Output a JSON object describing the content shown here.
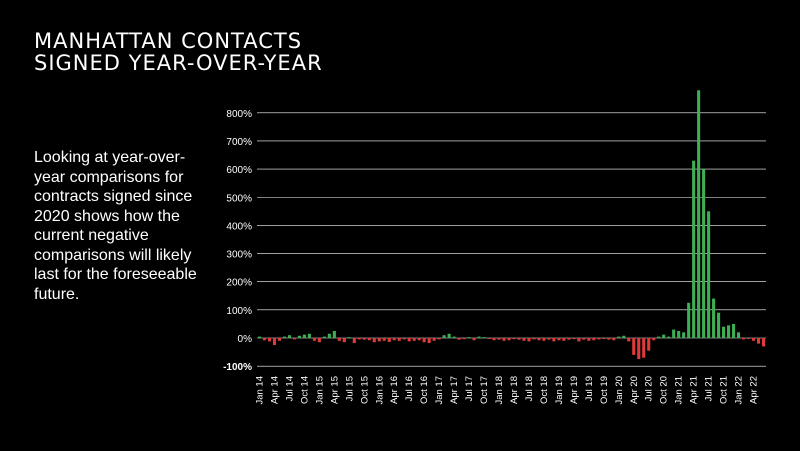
{
  "title": {
    "line1": "MANHATTAN CONTACTS",
    "line2": "SIGNED YEAR-OVER-YEAR"
  },
  "description": "Looking at year-over-year comparisons for contracts signed since 2020 shows how the current negative comparisons will likely last for the foreseeable future.",
  "chart_data": {
    "type": "bar",
    "title": "MANHATTAN CONTACTS SIGNED YEAR-OVER-YEAR",
    "xlabel": "",
    "ylabel": "",
    "unit": "%",
    "ylim": [
      -100,
      850
    ],
    "grid": true,
    "legend": "none",
    "colors": {
      "positive": "#3fae54",
      "negative": "#e03a3a",
      "grid": "#ffffff",
      "background": "#000000"
    },
    "y_ticks": [
      {
        "value": -100,
        "label": "-100%"
      },
      {
        "value": 0,
        "label": "0%"
      },
      {
        "value": 100,
        "label": "100%"
      },
      {
        "value": 200,
        "label": "200%"
      },
      {
        "value": 300,
        "label": "300%"
      },
      {
        "value": 400,
        "label": "400%"
      },
      {
        "value": 500,
        "label": "500%"
      },
      {
        "value": 600,
        "label": "600%"
      },
      {
        "value": 700,
        "label": "700%"
      },
      {
        "value": 800,
        "label": "800%"
      }
    ],
    "x_tick_labels": [
      "Jan 14",
      "Apr 14",
      "Jul 14",
      "Oct 14",
      "Jan 15",
      "Apr 15",
      "Jul 15",
      "Oct 15",
      "Jan 16",
      "Apr 16",
      "Jul 16",
      "Oct 16",
      "Jan 17",
      "Apr 17",
      "Jul 17",
      "Oct 17",
      "Jan 18",
      "Apr 18",
      "Jul 18",
      "Oct 18",
      "Jan 19",
      "Apr 19",
      "Jul 19",
      "Oct 19",
      "Jan 20",
      "Apr 20",
      "Jul 20",
      "Oct 20",
      "Jan 21",
      "Apr 21",
      "Jul 21",
      "Oct 21",
      "Jan 22",
      "Apr 22"
    ],
    "categories": [
      "Jan 14",
      "Feb 14",
      "Mar 14",
      "Apr 14",
      "May 14",
      "Jun 14",
      "Jul 14",
      "Aug 14",
      "Sep 14",
      "Oct 14",
      "Nov 14",
      "Dec 14",
      "Jan 15",
      "Feb 15",
      "Mar 15",
      "Apr 15",
      "May 15",
      "Jun 15",
      "Jul 15",
      "Aug 15",
      "Sep 15",
      "Oct 15",
      "Nov 15",
      "Dec 15",
      "Jan 16",
      "Feb 16",
      "Mar 16",
      "Apr 16",
      "May 16",
      "Jun 16",
      "Jul 16",
      "Aug 16",
      "Sep 16",
      "Oct 16",
      "Nov 16",
      "Dec 16",
      "Jan 17",
      "Feb 17",
      "Mar 17",
      "Apr 17",
      "May 17",
      "Jun 17",
      "Jul 17",
      "Aug 17",
      "Sep 17",
      "Oct 17",
      "Nov 17",
      "Dec 17",
      "Jan 18",
      "Feb 18",
      "Mar 18",
      "Apr 18",
      "May 18",
      "Jun 18",
      "Jul 18",
      "Aug 18",
      "Sep 18",
      "Oct 18",
      "Nov 18",
      "Dec 18",
      "Jan 19",
      "Feb 19",
      "Mar 19",
      "Apr 19",
      "May 19",
      "Jun 19",
      "Jul 19",
      "Aug 19",
      "Sep 19",
      "Oct 19",
      "Nov 19",
      "Dec 19",
      "Jan 20",
      "Feb 20",
      "Mar 20",
      "Apr 20",
      "May 20",
      "Jun 20",
      "Jul 20",
      "Aug 20",
      "Sep 20",
      "Oct 20",
      "Nov 20",
      "Dec 20",
      "Jan 21",
      "Feb 21",
      "Mar 21",
      "Apr 21",
      "May 21",
      "Jun 21",
      "Jul 21",
      "Aug 21",
      "Sep 21",
      "Oct 21",
      "Nov 21",
      "Dec 21",
      "Jan 22",
      "Feb 22",
      "Mar 22",
      "Apr 22",
      "May 22",
      "Jun 22"
    ],
    "values": [
      5,
      -8,
      -12,
      -25,
      -10,
      5,
      10,
      -5,
      8,
      12,
      15,
      -10,
      -15,
      5,
      15,
      25,
      -10,
      -15,
      3,
      -18,
      -5,
      -6,
      -8,
      -15,
      -12,
      -10,
      -14,
      -8,
      -10,
      -5,
      -12,
      -10,
      -8,
      -15,
      -18,
      -10,
      -5,
      10,
      15,
      5,
      -6,
      -4,
      3,
      -8,
      5,
      3,
      -3,
      -8,
      -6,
      -10,
      -8,
      -4,
      -6,
      -10,
      -12,
      -5,
      -8,
      -10,
      -6,
      -12,
      -8,
      -10,
      -6,
      -4,
      -12,
      -6,
      -10,
      -8,
      -5,
      -3,
      -6,
      -8,
      5,
      8,
      -12,
      -60,
      -75,
      -70,
      -45,
      -8,
      5,
      12,
      5,
      30,
      25,
      20,
      125,
      630,
      880,
      600,
      450,
      140,
      90,
      40,
      45,
      50,
      20,
      -5,
      -3,
      -10,
      -20,
      -30
    ]
  }
}
